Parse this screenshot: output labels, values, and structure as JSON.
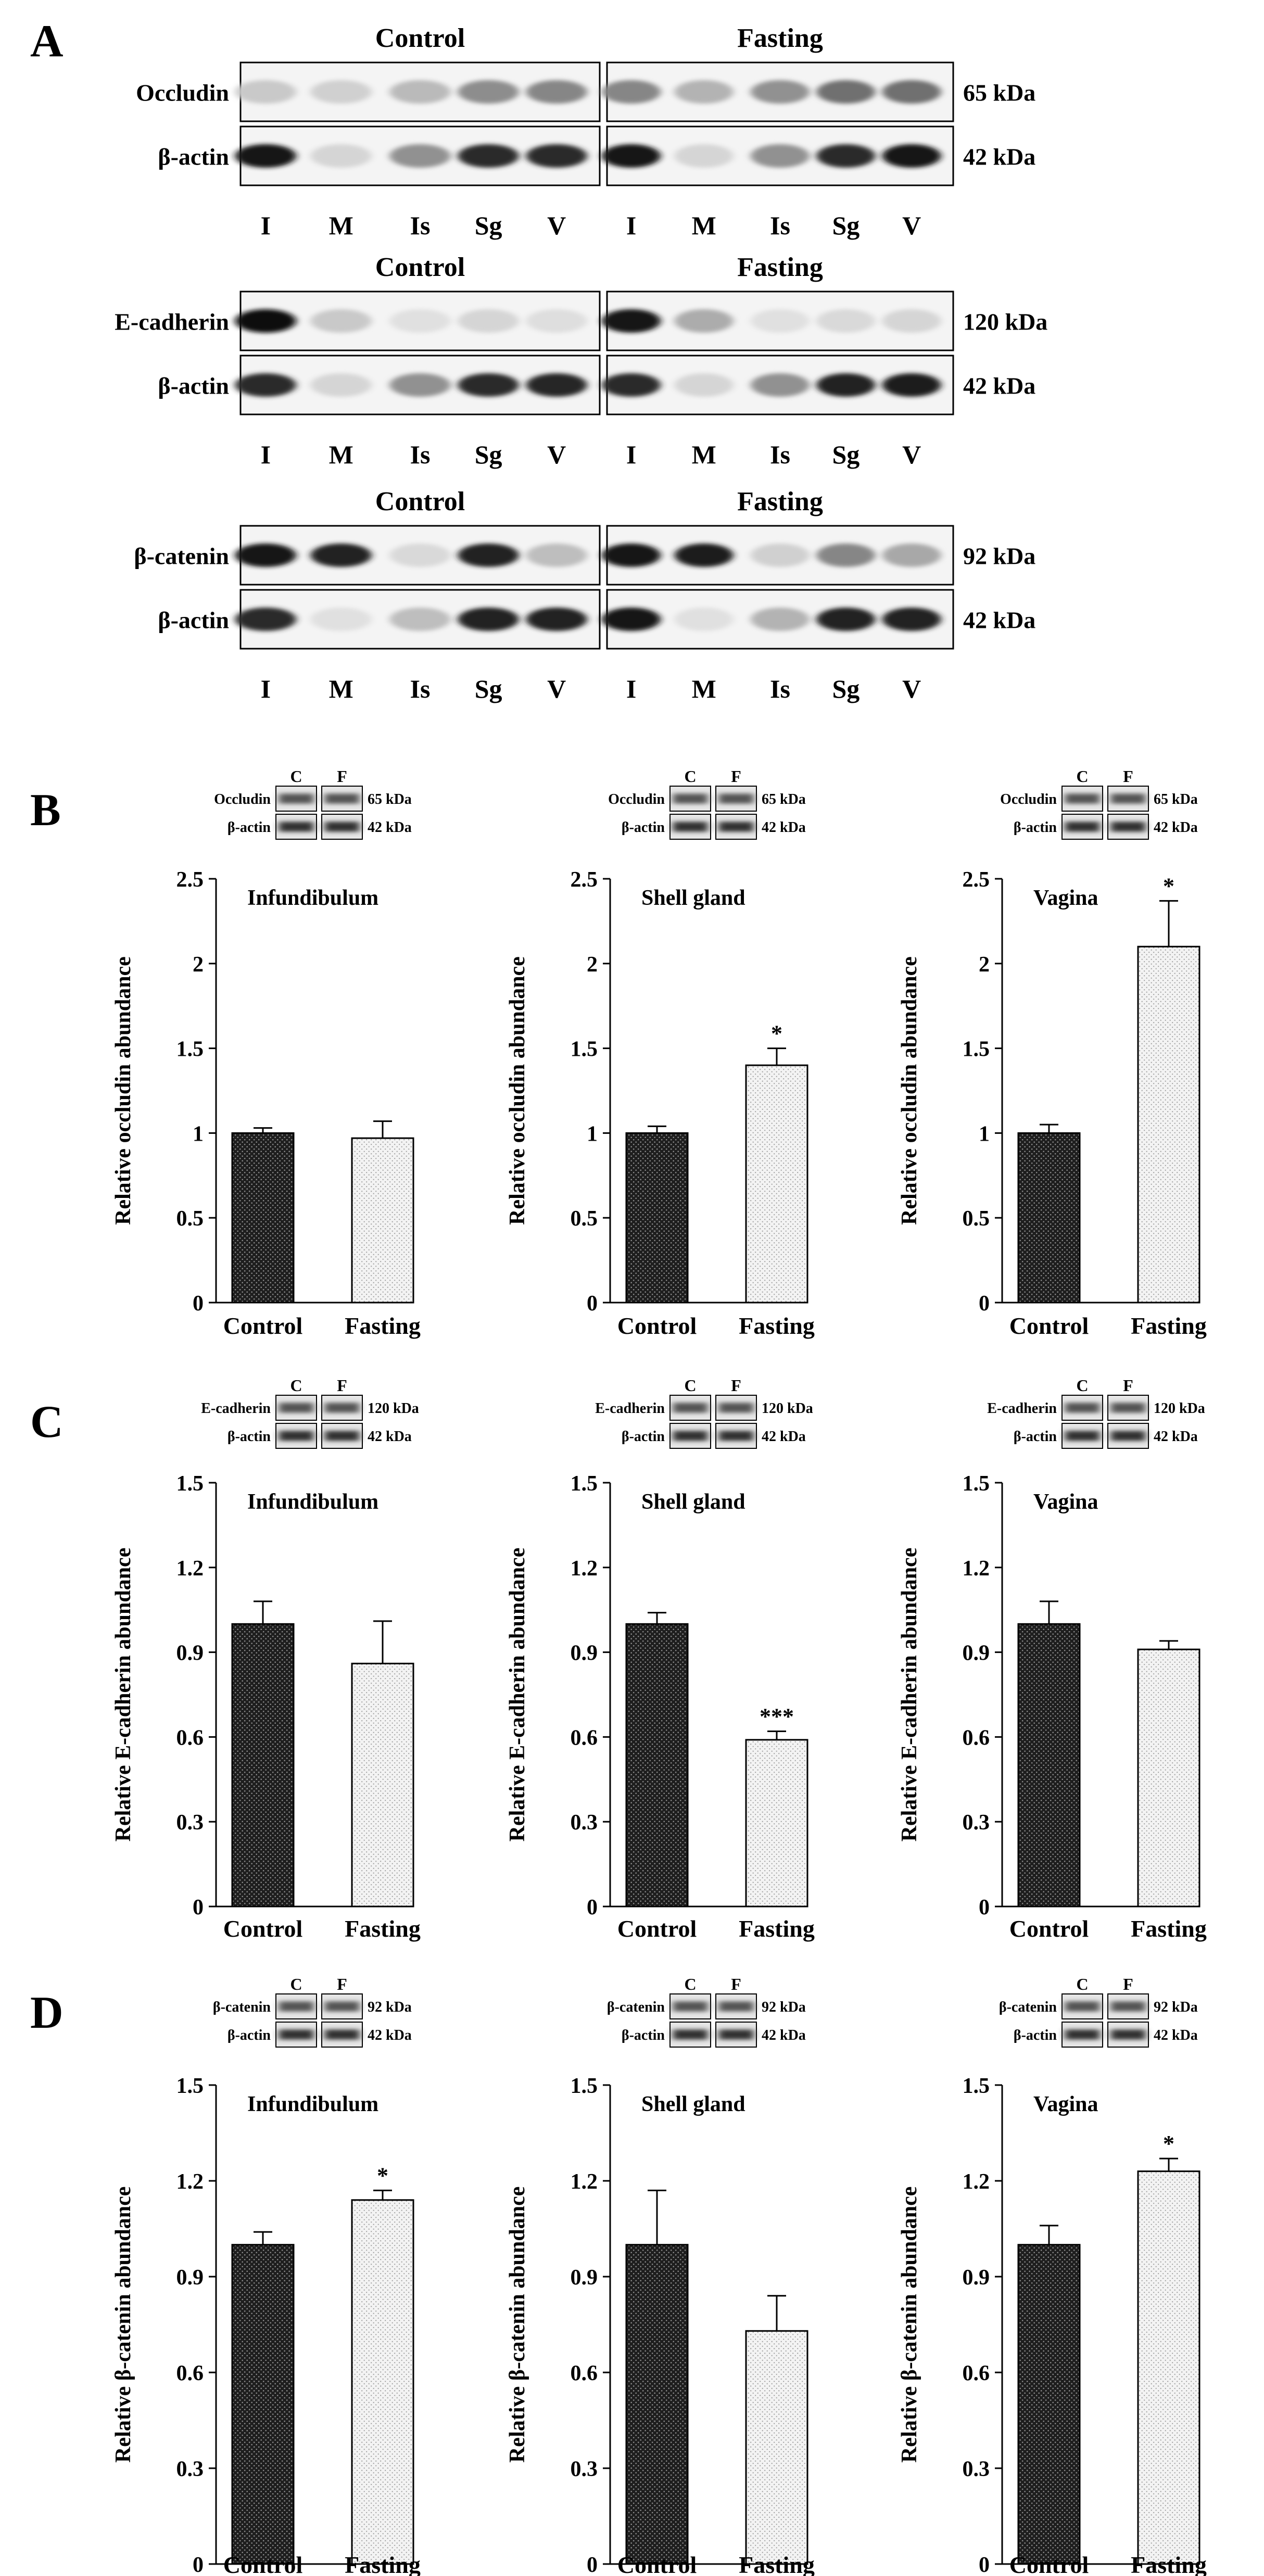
{
  "panel_letters": [
    "A",
    "B",
    "C",
    "D"
  ],
  "blots": {
    "group_labels": [
      "Control",
      "Fasting"
    ],
    "lanes": [
      "I",
      "M",
      "Is",
      "Sg",
      "V"
    ],
    "loading_control": "β-actin",
    "loading_size": "42 kDa",
    "proteins": [
      {
        "name": "Occludin",
        "size": "65 kDa"
      },
      {
        "name": "E-cadherin",
        "size": "120 kDa"
      },
      {
        "name": "β-catenin",
        "size": "92 kDa"
      }
    ]
  },
  "inset_labels": {
    "control": "C",
    "fasting": "F"
  },
  "colors": {
    "control_bar": "#1e1e1e",
    "fasting_bar": "#ebebeb",
    "axis": "#000000"
  },
  "chart_data": [
    {
      "type": "bar",
      "panel": "B",
      "title": "Infundibulum",
      "ylabel": "Relative occludin abundance",
      "inset": {
        "protein": "Occludin",
        "size": "65 kDa",
        "actin": "β-actin",
        "actin_size": "42 kDa"
      },
      "categories": [
        "Control",
        "Fasting"
      ],
      "values": [
        1.0,
        0.97
      ],
      "errors": [
        0.03,
        0.1
      ],
      "significance": [
        "",
        ""
      ],
      "ylim": [
        0,
        2.5
      ],
      "yticks": [
        "0",
        "0.5",
        "1",
        "1.5",
        "2",
        "2.5"
      ]
    },
    {
      "type": "bar",
      "panel": "B",
      "title": "Shell gland",
      "ylabel": "Relative occludin abundance",
      "inset": {
        "protein": "Occludin",
        "size": "65 kDa",
        "actin": "β-actin",
        "actin_size": "42 kDa"
      },
      "categories": [
        "Control",
        "Fasting"
      ],
      "values": [
        1.0,
        1.4
      ],
      "errors": [
        0.04,
        0.1
      ],
      "significance": [
        "",
        "*"
      ],
      "ylim": [
        0,
        2.5
      ],
      "yticks": [
        "0",
        "0.5",
        "1",
        "1.5",
        "2",
        "2.5"
      ]
    },
    {
      "type": "bar",
      "panel": "B",
      "title": "Vagina",
      "ylabel": "Relative occludin abundance",
      "inset": {
        "protein": "Occludin",
        "size": "65 kDa",
        "actin": "β-actin",
        "actin_size": "42 kDa"
      },
      "categories": [
        "Control",
        "Fasting"
      ],
      "values": [
        1.0,
        2.1
      ],
      "errors": [
        0.05,
        0.27
      ],
      "significance": [
        "",
        "*"
      ],
      "ylim": [
        0,
        2.5
      ],
      "yticks": [
        "0",
        "0.5",
        "1",
        "1.5",
        "2",
        "2.5"
      ]
    },
    {
      "type": "bar",
      "panel": "C",
      "title": "Infundibulum",
      "ylabel": "Relative E-cadherin abundance",
      "inset": {
        "protein": "E-cadherin",
        "size": "120 kDa",
        "actin": "β-actin",
        "actin_size": "42 kDa"
      },
      "categories": [
        "Control",
        "Fasting"
      ],
      "values": [
        1.0,
        0.86
      ],
      "errors": [
        0.08,
        0.15
      ],
      "significance": [
        "",
        ""
      ],
      "ylim": [
        0,
        1.5
      ],
      "yticks": [
        "0",
        "0.3",
        "0.6",
        "0.9",
        "1.2",
        "1.5"
      ]
    },
    {
      "type": "bar",
      "panel": "C",
      "title": "Shell gland",
      "ylabel": "Relative E-cadherin abundance",
      "inset": {
        "protein": "E-cadherin",
        "size": "120 kDa",
        "actin": "β-actin",
        "actin_size": "42 kDa"
      },
      "categories": [
        "Control",
        "Fasting"
      ],
      "values": [
        1.0,
        0.59
      ],
      "errors": [
        0.04,
        0.03
      ],
      "significance": [
        "",
        "***"
      ],
      "ylim": [
        0,
        1.5
      ],
      "yticks": [
        "0",
        "0.3",
        "0.6",
        "0.9",
        "1.2",
        "1.5"
      ]
    },
    {
      "type": "bar",
      "panel": "C",
      "title": "Vagina",
      "ylabel": "Relative E-cadherin abundance",
      "inset": {
        "protein": "E-cadherin",
        "size": "120 kDa",
        "actin": "β-actin",
        "actin_size": "42 kDa"
      },
      "categories": [
        "Control",
        "Fasting"
      ],
      "values": [
        1.0,
        0.91
      ],
      "errors": [
        0.08,
        0.03
      ],
      "significance": [
        "",
        ""
      ],
      "ylim": [
        0,
        1.5
      ],
      "yticks": [
        "0",
        "0.3",
        "0.6",
        "0.9",
        "1.2",
        "1.5"
      ]
    },
    {
      "type": "bar",
      "panel": "D",
      "title": "Infundibulum",
      "ylabel": "Relative β-catenin abundance",
      "inset": {
        "protein": "β-catenin",
        "size": "92 kDa",
        "actin": "β-actin",
        "actin_size": "42 kDa"
      },
      "categories": [
        "Control",
        "Fasting"
      ],
      "values": [
        1.0,
        1.14
      ],
      "errors": [
        0.04,
        0.03
      ],
      "significance": [
        "",
        "*"
      ],
      "ylim": [
        0,
        1.5
      ],
      "yticks": [
        "0",
        "0.3",
        "0.6",
        "0.9",
        "1.2",
        "1.5"
      ]
    },
    {
      "type": "bar",
      "panel": "D",
      "title": "Shell gland",
      "ylabel": "Relative β-catenin abundance",
      "inset": {
        "protein": "β-catenin",
        "size": "92 kDa",
        "actin": "β-actin",
        "actin_size": "42 kDa"
      },
      "categories": [
        "Control",
        "Fasting"
      ],
      "values": [
        1.0,
        0.73
      ],
      "errors": [
        0.17,
        0.11
      ],
      "significance": [
        "",
        ""
      ],
      "ylim": [
        0,
        1.5
      ],
      "yticks": [
        "0",
        "0.3",
        "0.6",
        "0.9",
        "1.2",
        "1.5"
      ]
    },
    {
      "type": "bar",
      "panel": "D",
      "title": "Vagina",
      "ylabel": "Relative β-catenin abundance",
      "inset": {
        "protein": "β-catenin",
        "size": "92 kDa",
        "actin": "β-actin",
        "actin_size": "42 kDa"
      },
      "categories": [
        "Control",
        "Fasting"
      ],
      "values": [
        1.0,
        1.23
      ],
      "errors": [
        0.06,
        0.04
      ],
      "significance": [
        "",
        "*"
      ],
      "ylim": [
        0,
        1.5
      ],
      "yticks": [
        "0",
        "0.3",
        "0.6",
        "0.9",
        "1.2",
        "1.5"
      ]
    }
  ]
}
